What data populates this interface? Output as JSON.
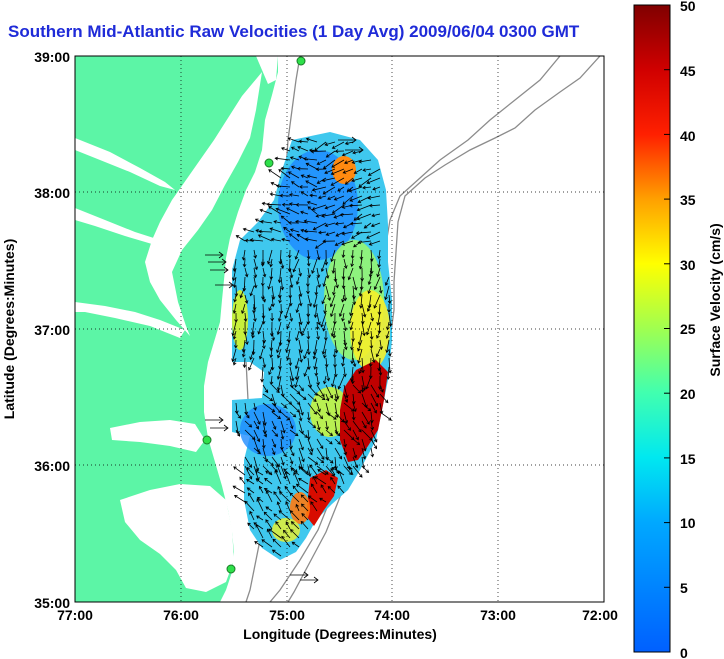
{
  "title": "Southern Mid-Atlantic Raw Velocities (1 Day Avg) 2009/06/04 0300 GMT",
  "x_axis": {
    "label": "Longitude (Degrees:Minutes)",
    "ticks": [
      "77:00",
      "76:00",
      "75:00",
      "74:00",
      "73:00",
      "72:00"
    ]
  },
  "y_axis": {
    "label": "Latitude (Degrees:Minutes)",
    "ticks": [
      "39:00",
      "38:00",
      "37:00",
      "36:00",
      "35:00"
    ]
  },
  "colorbar": {
    "label": "Surface Velocity (cm/s)",
    "ticks": [
      "50",
      "45",
      "40",
      "35",
      "30",
      "25",
      "20",
      "15",
      "10",
      "5",
      "0"
    ],
    "range": [
      0,
      50
    ]
  },
  "map_extent": {
    "lon": [
      -77,
      -72
    ],
    "lat": [
      35,
      39
    ]
  },
  "colors": {
    "land": "#5cf5a6",
    "title_blue": "#1f2bd8",
    "contour": "#8c8c8c",
    "station": "#2ee04a"
  }
}
